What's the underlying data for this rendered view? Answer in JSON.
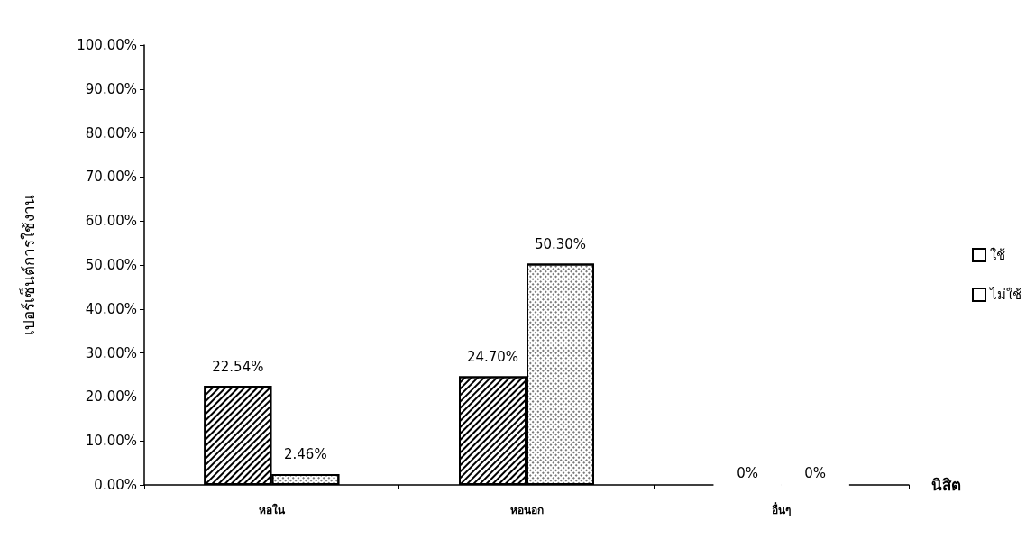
{
  "chart_data": {
    "type": "bar",
    "xlabel": "นิสิต",
    "ylabel": "เปอร์เซ็นต์การใช้งาน",
    "categories": [
      "หอใน",
      "หอนอก",
      "อื่นๆ"
    ],
    "series": [
      {
        "name": "ใช้",
        "color": "#ffffff",
        "values": [
          22.54,
          24.7,
          0
        ],
        "value_labels": [
          "22.54%",
          "24.70%",
          "0%"
        ]
      },
      {
        "name": "ไม่ใช้",
        "color": "#ffffff",
        "values": [
          2.46,
          50.3,
          0
        ],
        "value_labels": [
          "2.46%",
          "50.30%",
          "0%"
        ]
      }
    ],
    "ylim": [
      0,
      100
    ],
    "yticks": [
      {
        "value": 0,
        "label": "0.00%"
      },
      {
        "value": 10,
        "label": "10.00%"
      },
      {
        "value": 20,
        "label": "20.00%"
      },
      {
        "value": 30,
        "label": "30.00%"
      },
      {
        "value": 40,
        "label": "40.00%"
      },
      {
        "value": 50,
        "label": "50.00%"
      },
      {
        "value": 60,
        "label": "60.00%"
      },
      {
        "value": 70,
        "label": "70.00%"
      },
      {
        "value": 80,
        "label": "80.00%"
      },
      {
        "value": 90,
        "label": "90.00%"
      },
      {
        "value": 100,
        "label": "100.00%"
      }
    ],
    "grid": false,
    "legend": "right"
  }
}
